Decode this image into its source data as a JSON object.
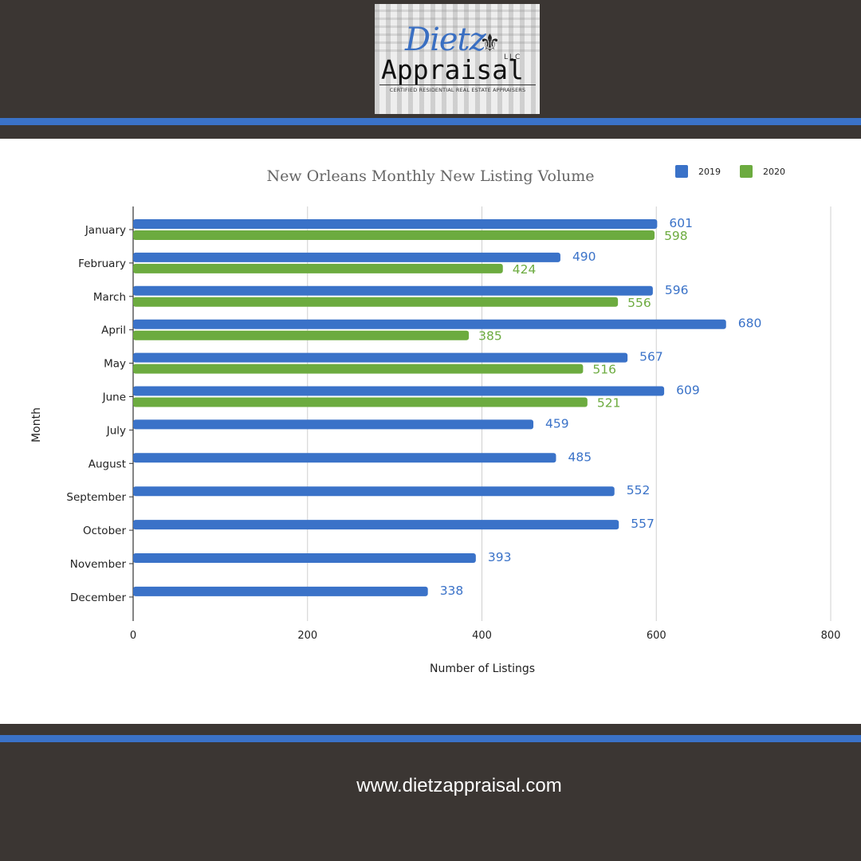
{
  "logo": {
    "script_text": "Dietz",
    "main_text": "Appraisal",
    "llc_text": "LLC",
    "tagline": "CERTIFIED RESIDENTIAL REAL ESTATE APPRAISERS"
  },
  "footer": {
    "url": "www.dietzappraisal.com"
  },
  "colors": {
    "background": "#3b3633",
    "stripe": "#3a72c8",
    "series_2019": "#3a72c8",
    "series_2020": "#6cab3f"
  },
  "chart_data": {
    "type": "bar",
    "orientation": "horizontal",
    "title": "New Orleans Monthly New Listing Volume",
    "xlabel": "Number of Listings",
    "ylabel": "Month",
    "xlim": [
      0,
      800
    ],
    "xticks": [
      0,
      200,
      400,
      600,
      800
    ],
    "grid": true,
    "legend_position": "top-right",
    "categories": [
      "January",
      "February",
      "March",
      "April",
      "May",
      "June",
      "July",
      "August",
      "September",
      "October",
      "November",
      "December"
    ],
    "series": [
      {
        "name": "2019",
        "color": "#3a72c8",
        "values": [
          601,
          490,
          596,
          680,
          567,
          609,
          459,
          485,
          552,
          557,
          393,
          338
        ]
      },
      {
        "name": "2020",
        "color": "#6cab3f",
        "values": [
          598,
          424,
          556,
          385,
          516,
          521,
          null,
          null,
          null,
          null,
          null,
          null
        ]
      }
    ]
  }
}
